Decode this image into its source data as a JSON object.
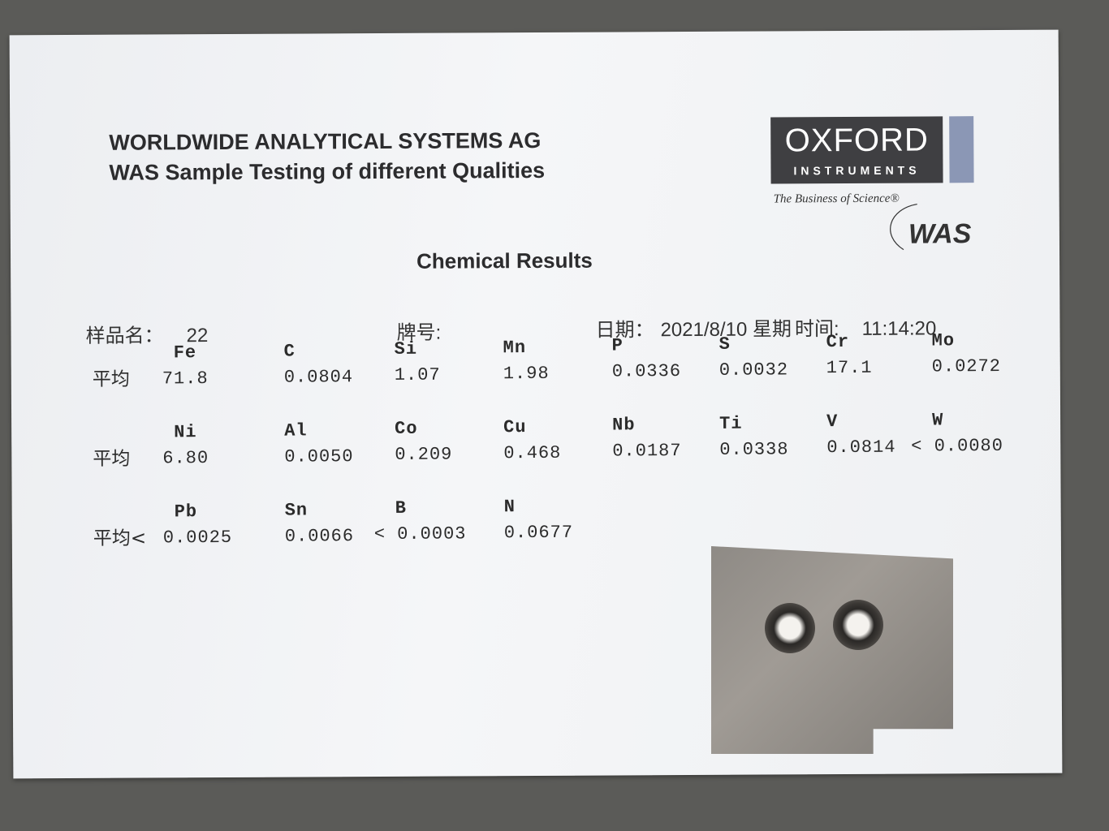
{
  "header": {
    "company": "WORLDWIDE ANALYTICAL SYSTEMS AG",
    "subtitle": "WAS Sample Testing of different Qualities",
    "title": "Chemical Results"
  },
  "logo": {
    "brand": "OXFORD",
    "sub": "INSTRUMENTS",
    "tagline": "The Business of Science®",
    "mark": "WAS",
    "colors": {
      "box": "#3f3f42",
      "side": "#8b97b5"
    }
  },
  "meta": {
    "sample_label": "样品名：",
    "sample_value": "22",
    "grade_label": "牌号:",
    "date_label": "日期：",
    "date_value": "2021/8/10 星期",
    "time_label": "时间:",
    "time_value": "11:14:20"
  },
  "rows": [
    {
      "prefix": "平均",
      "items": [
        {
          "el": "Fe",
          "val": "71.8"
        },
        {
          "el": "C",
          "val": "0.0804"
        },
        {
          "el": "Si",
          "val": "1.07"
        },
        {
          "el": "Mn",
          "val": "1.98"
        },
        {
          "el": "P",
          "val": "0.0336"
        },
        {
          "el": "S",
          "val": "0.0032"
        },
        {
          "el": "Cr",
          "val": "17.1"
        },
        {
          "el": "Mo",
          "val": "0.0272"
        }
      ]
    },
    {
      "prefix": "平均",
      "items": [
        {
          "el": "Ni",
          "val": "6.80"
        },
        {
          "el": "Al",
          "val": "0.0050"
        },
        {
          "el": "Co",
          "val": "0.209"
        },
        {
          "el": "Cu",
          "val": "0.468"
        },
        {
          "el": "Nb",
          "val": "0.0187"
        },
        {
          "el": "Ti",
          "val": "0.0338"
        },
        {
          "el": "V",
          "val": "0.0814"
        },
        {
          "el": "W",
          "val": "< 0.0080"
        }
      ]
    },
    {
      "prefix": "平均<",
      "items": [
        {
          "el": "Pb",
          "val": "0.0025"
        },
        {
          "el": "Sn",
          "val": "0.0066"
        },
        {
          "el": "B",
          "val": "< 0.0003"
        },
        {
          "el": "N",
          "val": "0.0677"
        }
      ]
    }
  ]
}
